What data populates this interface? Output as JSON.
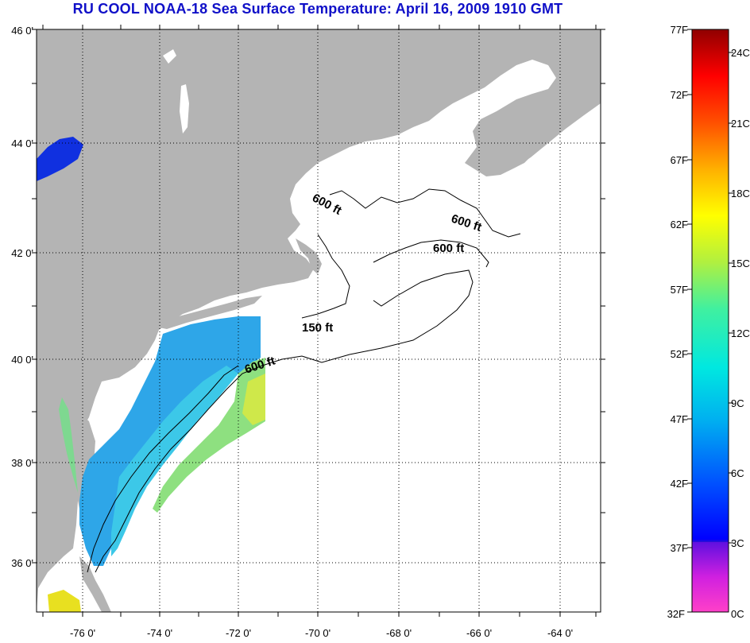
{
  "title": "RU COOL  NOAA-18  Sea Surface Temperature:  April 16, 2009 1910 GMT",
  "map": {
    "latitude_labels": [
      "46 0'",
      "44 0'",
      "42 0'",
      "40 0'",
      "38 0'",
      "36 0'"
    ],
    "longitude_labels": [
      "-76 0'",
      "-74 0'",
      "-72 0'",
      "-70 0'",
      "-68 0'",
      "-66 0'",
      "-64 0'"
    ],
    "contour_labels": [
      "600 ft",
      "600 ft",
      "600 ft",
      "150 ft",
      "600 ft"
    ],
    "colors": {
      "land": "#b4b4b4",
      "water": "#ffffff",
      "no_data": "#ffffff"
    }
  },
  "colorbar": {
    "fahrenheit_labels": [
      "77F",
      "72F",
      "67F",
      "62F",
      "57F",
      "52F",
      "47F",
      "42F",
      "37F",
      "32F"
    ],
    "celsius_labels": [
      "24C",
      "21C",
      "18C",
      "15C",
      "12C",
      "9C",
      "6C",
      "3C",
      "0C"
    ],
    "range_F": [
      32,
      77
    ],
    "range_C": [
      0,
      25
    ]
  }
}
